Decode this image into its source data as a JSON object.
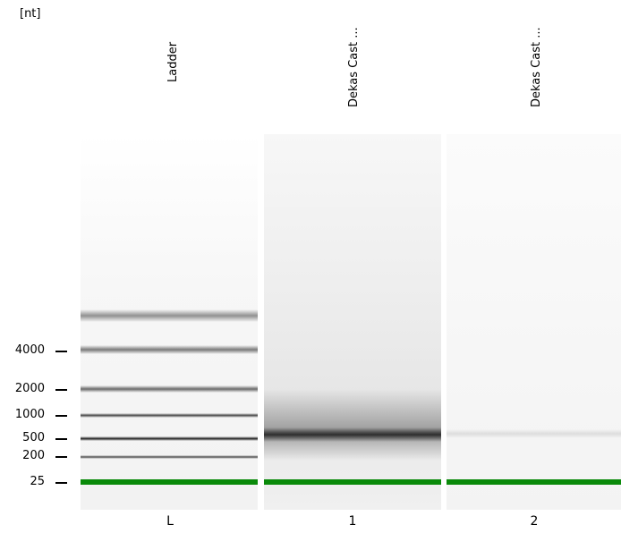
{
  "axis": {
    "unit_label": "[nt]"
  },
  "lanes": [
    {
      "title": "Ladder",
      "id": "L"
    },
    {
      "title": "Dekas Cast ...",
      "id": "1"
    },
    {
      "title": "Dekas Cast ...",
      "id": "2"
    }
  ],
  "size_ticks": [
    "4000",
    "2000",
    "1000",
    "500",
    "200",
    "25"
  ],
  "colors": {
    "marker": "#0a8a0a",
    "band": "#222222"
  }
}
